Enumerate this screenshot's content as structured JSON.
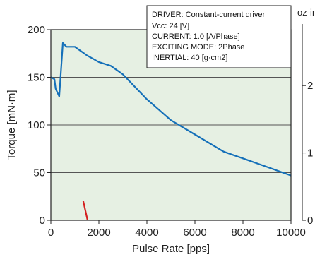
{
  "chart_data": {
    "type": "line",
    "xlabel": "Pulse Rate [pps]",
    "ylabel": "Torque [mN·m]",
    "y2label": "oz-in",
    "xlim": [
      0,
      10000
    ],
    "ylim": [
      0,
      200
    ],
    "y2lim": [
      0,
      2.83
    ],
    "x_ticks": [
      "0",
      "2000",
      "4000",
      "6000",
      "8000",
      "10000"
    ],
    "y_ticks": [
      "0",
      "50",
      "100",
      "150",
      "200"
    ],
    "y2_ticks": [
      "0",
      "1",
      "2"
    ],
    "grid": "horizontal",
    "info_box": [
      "DRIVER: Constant-current driver",
      "Vcc: 24 [V]",
      "CURRENT: 1.0 [A/Phase]",
      "EXCITING MODE: 2Phase",
      "INERTIAL: 40 [g·cm2]"
    ],
    "series": [
      {
        "color": "#1570b9",
        "x": [
          0,
          150,
          200,
          350,
          500,
          650,
          1000,
          1500,
          2000,
          2500,
          3000,
          4000,
          5000,
          6000,
          7000,
          7200,
          8000,
          9000,
          10000
        ],
        "y": [
          150,
          148,
          138,
          130,
          186,
          182,
          182,
          173,
          166,
          162,
          153,
          127,
          105,
          90,
          75,
          72,
          65,
          56,
          47
        ]
      },
      {
        "color": "#d42020",
        "x": [
          1350,
          1530
        ],
        "y": [
          20,
          0
        ]
      }
    ],
    "colors": {
      "plot_background": "#e6f0e3",
      "grid": "#555555",
      "axis": "#222222"
    }
  }
}
